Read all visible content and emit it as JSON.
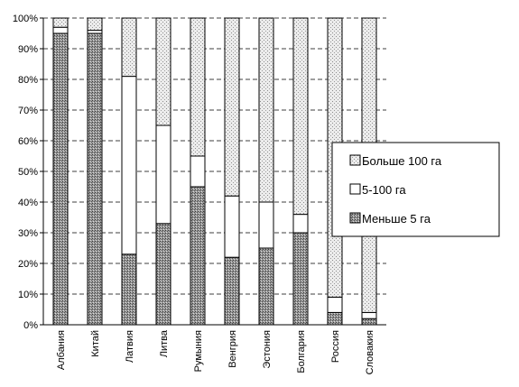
{
  "chart_data": {
    "type": "bar",
    "stacked": "percent",
    "categories": [
      "Албания",
      "Китай",
      "Латвия",
      "Литва",
      "Румыния",
      "Венгрия",
      "Эстония",
      "Болгария",
      "Россия",
      "Словакия"
    ],
    "series": [
      {
        "name": "Меньше 5 га",
        "values": [
          95,
          95,
          23,
          33,
          45,
          22,
          25,
          30,
          4,
          2
        ]
      },
      {
        "name": "5-100 га",
        "values": [
          2,
          1,
          58,
          32,
          10,
          20,
          15,
          6,
          5,
          2
        ]
      },
      {
        "name": "Больше 100 га",
        "values": [
          3,
          4,
          19,
          35,
          45,
          58,
          60,
          64,
          91,
          96
        ]
      }
    ],
    "y_ticks": [
      "0%",
      "10%",
      "20%",
      "30%",
      "40%",
      "50%",
      "60%",
      "70%",
      "80%",
      "90%",
      "100%"
    ],
    "ylim": [
      0,
      100
    ],
    "grid": true,
    "legend_position": "right",
    "colors": {
      "dark": "#8c8c8c",
      "white": "#ffffff",
      "light": "#d6d6d6",
      "stroke": "#000000"
    }
  }
}
